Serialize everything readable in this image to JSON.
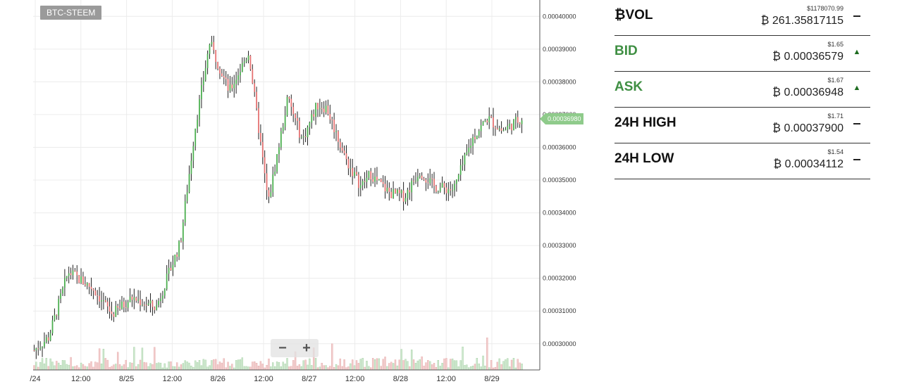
{
  "pair_label": "BTC-STEEM",
  "last_price": "0.00036980",
  "zoom": {
    "out_label": "−",
    "in_label": "+"
  },
  "colors": {
    "up": "#4caf50",
    "down": "#e57373",
    "wick": "#222222",
    "last_price": "#8fcb8b",
    "label_green": "#3f8f43"
  },
  "stats": [
    {
      "label": "₿VOL",
      "usd": "$1178070.99",
      "btc": "₿ 261.35817115",
      "indicator": "dash",
      "label_color": "default"
    },
    {
      "label": "BID",
      "usd": "$1.65",
      "btc": "₿ 0.00036579",
      "indicator": "up-arrow",
      "label_color": "green"
    },
    {
      "label": "ASK",
      "usd": "$1.67",
      "btc": "₿ 0.00036948",
      "indicator": "up-arrow",
      "label_color": "green"
    },
    {
      "label": "24H HIGH",
      "usd": "$1.71",
      "btc": "₿ 0.00037900",
      "indicator": "dash",
      "label_color": "default"
    },
    {
      "label": "24H LOW",
      "usd": "$1.54",
      "btc": "₿ 0.00034112",
      "indicator": "dash",
      "label_color": "default"
    }
  ],
  "chart_data": {
    "type": "candlestick",
    "x_ticks": [
      "/24",
      "12:00",
      "8/25",
      "12:00",
      "8/26",
      "12:00",
      "8/27",
      "12:00",
      "8/28",
      "12:00",
      "8/29"
    ],
    "y_ticks": [
      "0.00030000",
      "0.00031000",
      "0.00032000",
      "0.00033000",
      "0.00034000",
      "0.00035000",
      "0.00036000",
      "0.00037000",
      "0.00038000",
      "0.00039000",
      "0.00040000"
    ],
    "ylim": [
      0.000292,
      0.000405
    ],
    "grid": true,
    "price_path_x": [
      0,
      0.03,
      0.07,
      0.12,
      0.16,
      0.2,
      0.25,
      0.3,
      0.33,
      0.36,
      0.4,
      0.44,
      0.48,
      0.52,
      0.55,
      0.58,
      0.6,
      0.64,
      0.67,
      0.69,
      0.7,
      0.73,
      0.76,
      0.79,
      0.82,
      0.86,
      0.9,
      0.93,
      0.96,
      1.0
    ],
    "price_path_y": [
      0.000298,
      0.000302,
      0.000322,
      0.000317,
      0.000309,
      0.000314,
      0.000311,
      0.000331,
      0.000366,
      0.000392,
      0.000377,
      0.000389,
      0.000343,
      0.000375,
      0.000362,
      0.000373,
      0.000372,
      0.000356,
      0.000348,
      0.000352,
      0.00035,
      0.000346,
      0.000345,
      0.000353,
      0.000348,
      0.000347,
      0.000363,
      0.000369,
      0.000365,
      0.000369
    ],
    "candle_count": 240
  }
}
